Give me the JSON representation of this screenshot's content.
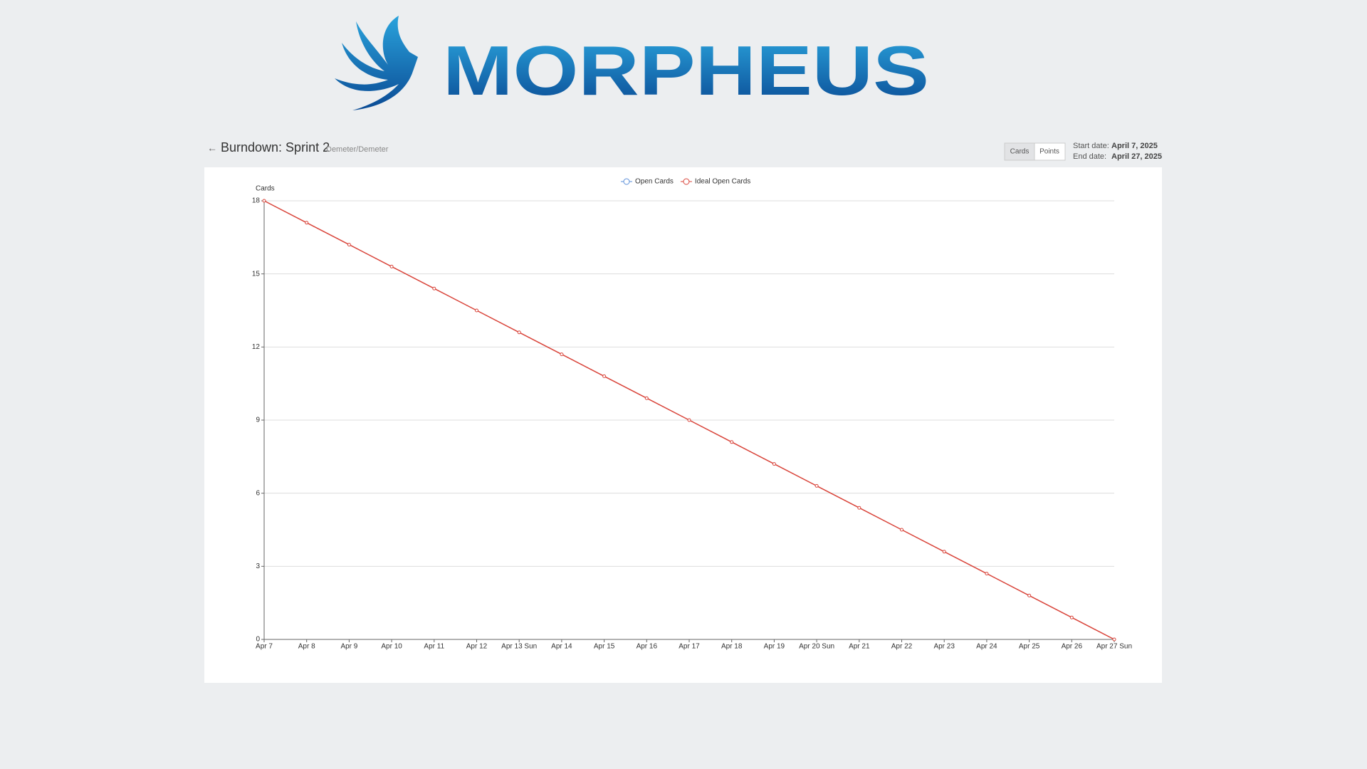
{
  "logo": {
    "text": "MORPHEUS"
  },
  "header": {
    "title": "Burndown: Sprint 2",
    "subtitle": "Demeter/Demeter",
    "buttons": [
      "Cards",
      "Points"
    ],
    "start_label": "Start date:",
    "start_value": "April 7, 2025",
    "end_label": "End date:",
    "end_value": "April 27, 2025"
  },
  "chart_data": {
    "type": "line",
    "y_label": "Cards",
    "categories": [
      "Apr 7",
      "Apr 8",
      "Apr 9",
      "Apr 10",
      "Apr 11",
      "Apr 12",
      "Apr 13 Sun",
      "Apr 14",
      "Apr 15",
      "Apr 16",
      "Apr 17",
      "Apr 18",
      "Apr 19",
      "Apr 20 Sun",
      "Apr 21",
      "Apr 22",
      "Apr 23",
      "Apr 24",
      "Apr 25",
      "Apr 26",
      "Apr 27 Sun"
    ],
    "series": [
      {
        "name": "Open Cards",
        "color": "#5b8fd9",
        "values": [
          null,
          null,
          null,
          null,
          null,
          null,
          null,
          null,
          null,
          null,
          null,
          null,
          null,
          null,
          null,
          null,
          null,
          null,
          null,
          null,
          null
        ]
      },
      {
        "name": "Ideal Open Cards",
        "color": "#d9443a",
        "values": [
          18,
          17.1,
          16.2,
          15.3,
          14.4,
          13.5,
          12.6,
          11.7,
          10.8,
          9.9,
          9,
          8.1,
          7.2,
          6.3,
          5.4,
          4.5,
          3.6,
          2.7,
          1.8,
          0.9,
          0
        ]
      }
    ],
    "ylim": [
      0,
      18
    ],
    "yticks": [
      0,
      3,
      6,
      9,
      12,
      15,
      18
    ],
    "grid": true,
    "legend": "top"
  }
}
